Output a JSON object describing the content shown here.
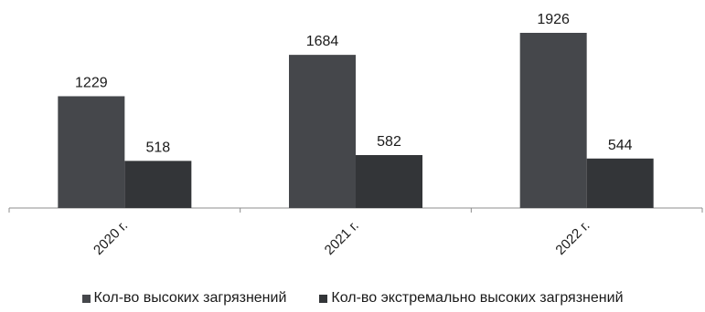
{
  "chart_data": {
    "type": "bar",
    "title": "",
    "xlabel": "",
    "ylabel": "",
    "categories": [
      "2020 г.",
      "2021 г.",
      "2022 г."
    ],
    "series": [
      {
        "name": "Кол-во высоких загрязнений",
        "values": [
          1229,
          1684,
          1926
        ],
        "color": "#45474b"
      },
      {
        "name": "Кол-во экстремально высоких загрязнений",
        "values": [
          518,
          582,
          544
        ],
        "color": "#333538"
      }
    ],
    "ylim": [
      0,
      1926
    ],
    "grid": false,
    "legend": "bottom"
  }
}
